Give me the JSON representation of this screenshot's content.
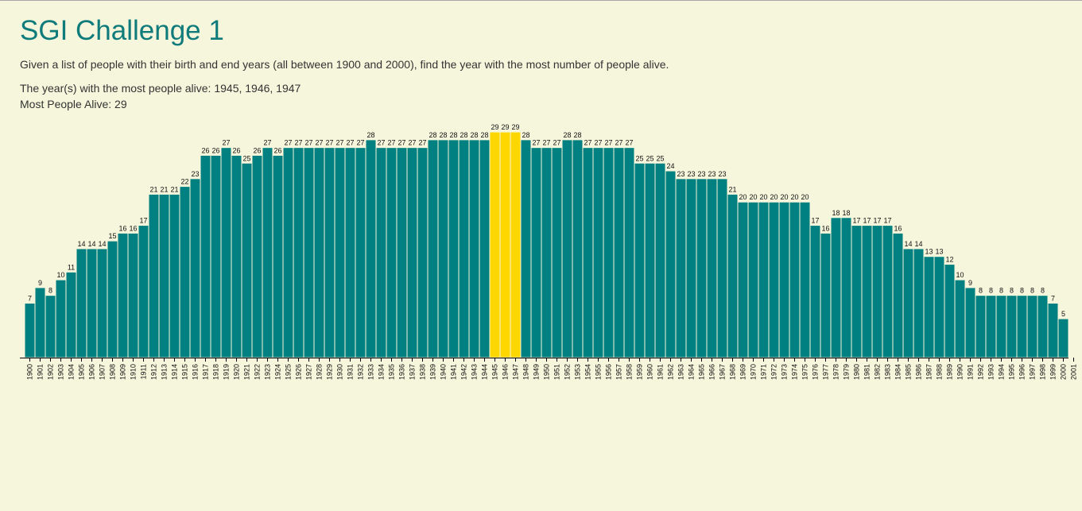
{
  "page": {
    "title": "SGI Challenge 1",
    "description": "Given a list of people with their birth and end years (all between 1900 and 2000), find the year with the most number of people alive.",
    "result_years_label": "The year(s) with the most people alive: 1945, 1946, 1947",
    "result_max_label": "Most People Alive: 29"
  },
  "chart_data": {
    "type": "bar",
    "title": "",
    "xlabel": "",
    "ylabel": "",
    "categories": [
      1900,
      1901,
      1902,
      1903,
      1904,
      1905,
      1906,
      1907,
      1908,
      1909,
      1910,
      1911,
      1912,
      1913,
      1914,
      1915,
      1916,
      1917,
      1918,
      1919,
      1920,
      1921,
      1922,
      1923,
      1924,
      1925,
      1926,
      1927,
      1928,
      1929,
      1930,
      1931,
      1932,
      1933,
      1934,
      1935,
      1936,
      1937,
      1938,
      1939,
      1940,
      1941,
      1942,
      1943,
      1944,
      1945,
      1946,
      1947,
      1948,
      1949,
      1950,
      1951,
      1952,
      1953,
      1954,
      1955,
      1956,
      1957,
      1958,
      1959,
      1960,
      1961,
      1962,
      1963,
      1964,
      1965,
      1966,
      1967,
      1968,
      1969,
      1970,
      1971,
      1972,
      1973,
      1974,
      1975,
      1976,
      1977,
      1978,
      1979,
      1980,
      1981,
      1982,
      1983,
      1984,
      1985,
      1986,
      1987,
      1988,
      1989,
      1990,
      1991,
      1992,
      1993,
      1994,
      1995,
      1996,
      1997,
      1998,
      1999,
      2000
    ],
    "values": [
      7,
      9,
      8,
      10,
      11,
      14,
      14,
      14,
      15,
      16,
      16,
      17,
      21,
      21,
      21,
      22,
      23,
      26,
      26,
      27,
      26,
      25,
      26,
      27,
      26,
      27,
      27,
      27,
      27,
      27,
      27,
      27,
      27,
      28,
      27,
      27,
      27,
      27,
      27,
      28,
      28,
      28,
      28,
      28,
      28,
      29,
      29,
      29,
      28,
      27,
      27,
      27,
      28,
      28,
      27,
      27,
      27,
      27,
      27,
      25,
      25,
      25,
      24,
      23,
      23,
      23,
      23,
      23,
      21,
      20,
      20,
      20,
      20,
      20,
      20,
      20,
      17,
      16,
      18,
      18,
      17,
      17,
      17,
      17,
      16,
      14,
      14,
      13,
      13,
      12,
      10,
      9,
      8,
      8,
      8,
      8,
      8,
      8,
      8,
      7,
      5
    ],
    "axis_ticks": [
      1900,
      1901,
      1902,
      1903,
      1904,
      1905,
      1906,
      1907,
      1908,
      1909,
      1910,
      1911,
      1912,
      1913,
      1914,
      1915,
      1916,
      1917,
      1918,
      1919,
      1920,
      1921,
      1922,
      1923,
      1924,
      1925,
      1926,
      1927,
      1928,
      1929,
      1930,
      1931,
      1932,
      1933,
      1934,
      1935,
      1936,
      1937,
      1938,
      1939,
      1940,
      1941,
      1942,
      1943,
      1944,
      1945,
      1946,
      1947,
      1948,
      1949,
      1950,
      1951,
      1952,
      1953,
      1954,
      1955,
      1956,
      1957,
      1958,
      1959,
      1960,
      1961,
      1962,
      1963,
      1964,
      1965,
      1966,
      1967,
      1968,
      1969,
      1970,
      1971,
      1972,
      1973,
      1974,
      1975,
      1976,
      1977,
      1978,
      1979,
      1980,
      1981,
      1982,
      1983,
      1984,
      1985,
      1986,
      1987,
      1988,
      1989,
      1990,
      1991,
      1992,
      1993,
      1994,
      1995,
      1996,
      1997,
      1998,
      1999,
      2000,
      2001
    ],
    "highlighted_categories": [
      1945,
      1946,
      1947
    ],
    "ylim": [
      0,
      29
    ],
    "grid": false,
    "legend": "none",
    "colors": {
      "bar": "#008080",
      "highlight": "#ffd700",
      "bar_stroke": "#f6f6dc",
      "text": "#111111"
    }
  }
}
